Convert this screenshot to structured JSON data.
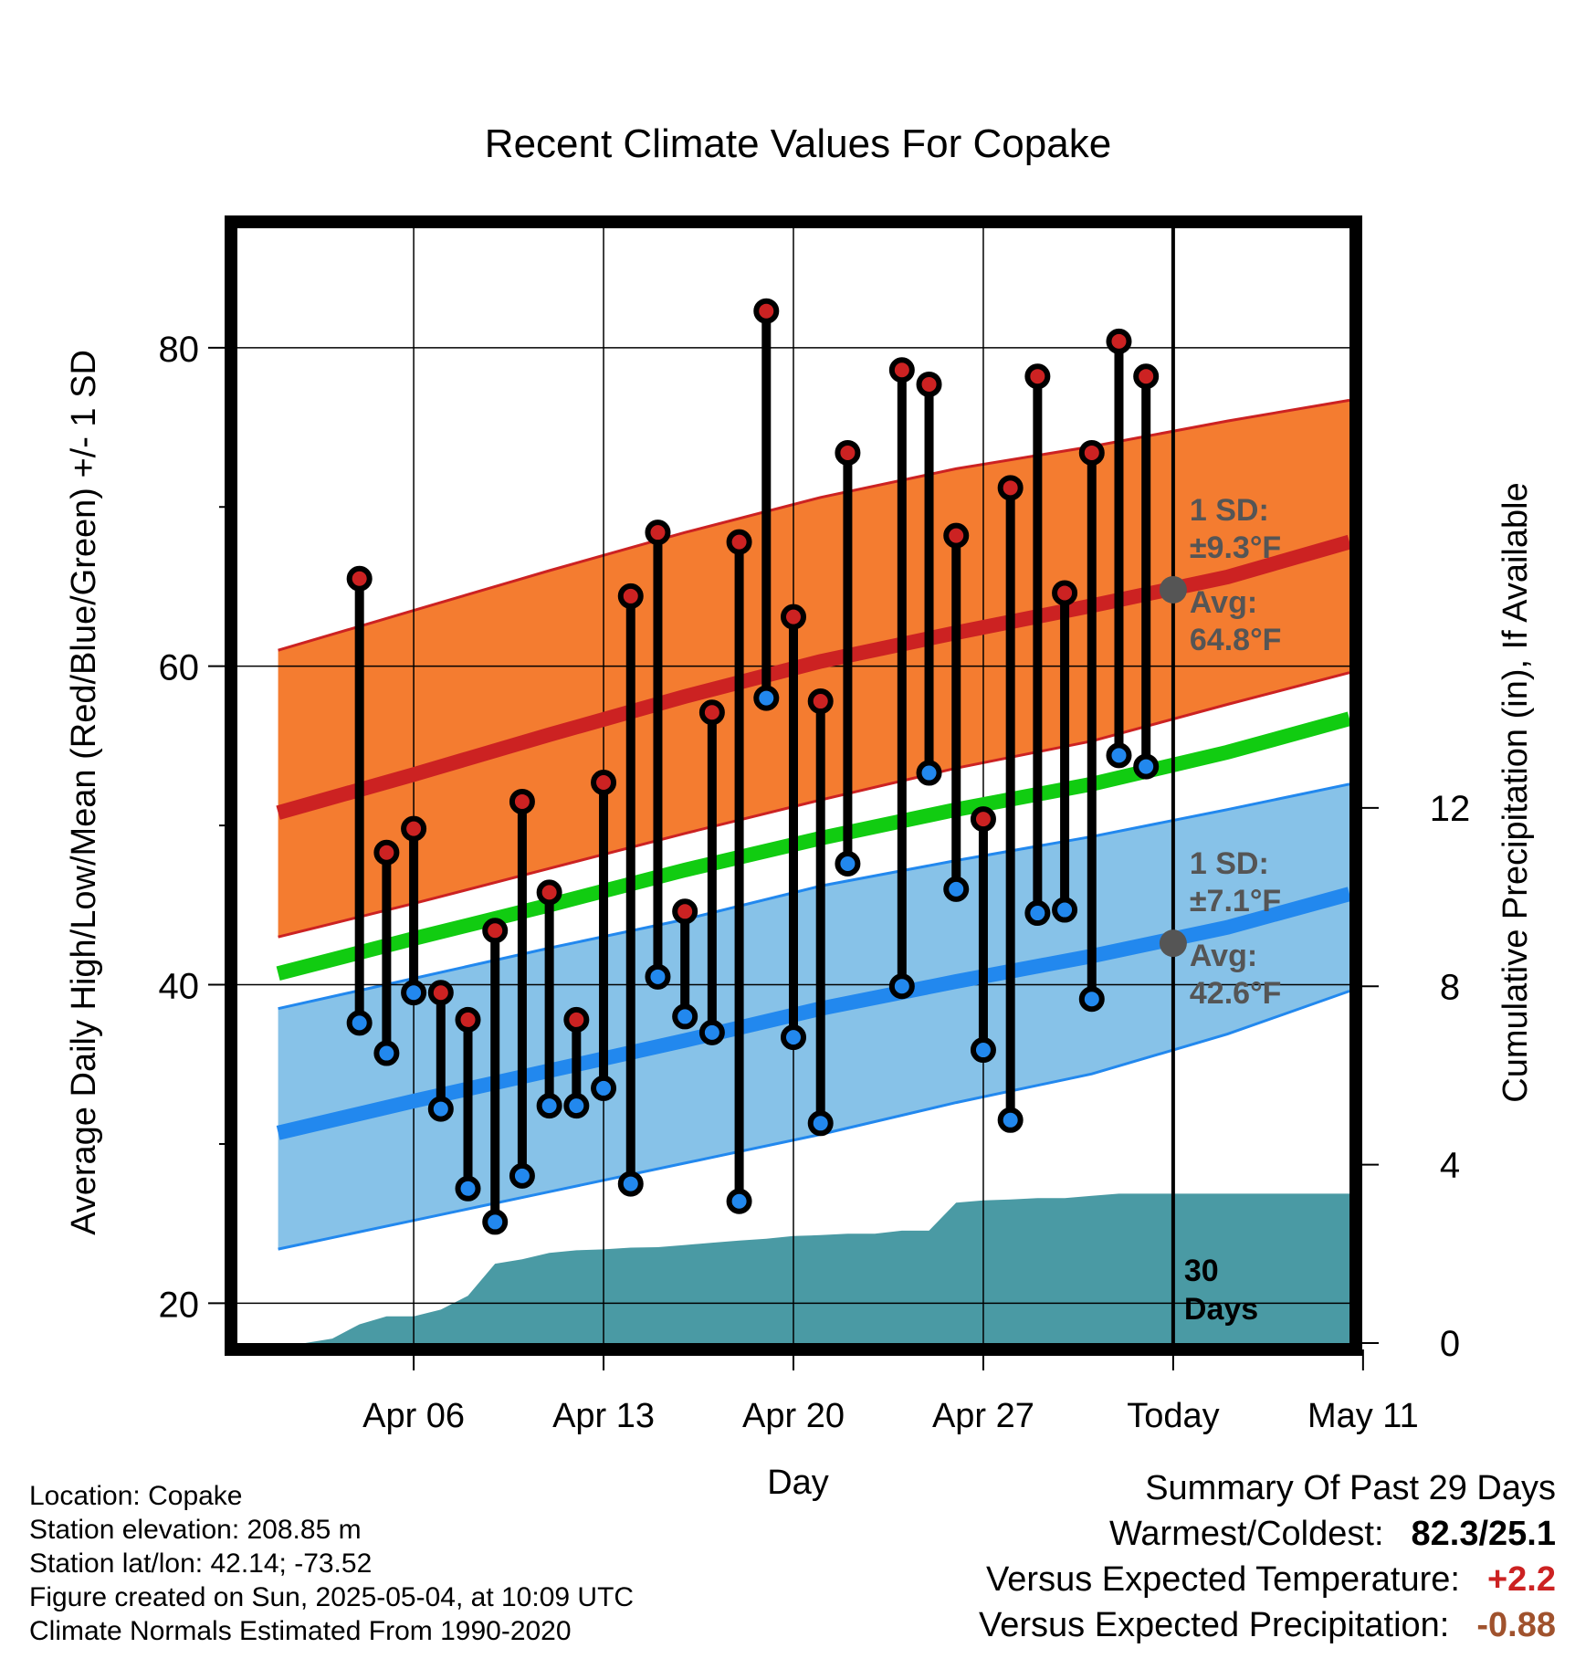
{
  "chart_data": {
    "type": "line",
    "title": "Recent Climate Values For Copake",
    "xlabel": "Day",
    "ylabel": "Average Daily High/Low/Mean (Red/Blue/Green) +/- 1 SD",
    "y2label": "Cumulative Precipitation (in), If Available",
    "ylim": [
      17.5,
      87.5
    ],
    "y_ticks": [
      20,
      40,
      60,
      80
    ],
    "y2lim": [
      0,
      25
    ],
    "y2_ticks": [
      0,
      4,
      8,
      12
    ],
    "x_day_range": [
      -1.5,
      39.5
    ],
    "x_ticks": [
      {
        "day": 5,
        "label": "Apr 06"
      },
      {
        "day": 12,
        "label": "Apr 13"
      },
      {
        "day": 19,
        "label": "Apr 20"
      },
      {
        "day": 26,
        "label": "Apr 27"
      },
      {
        "day": 33,
        "label": "Today"
      },
      {
        "day": 40,
        "label": "May 11"
      }
    ],
    "grid": true,
    "today_day": 33,
    "colors": {
      "high": "#cc2222",
      "low": "#2288ee",
      "mean": "#11cc11",
      "high_band": "#f47c30",
      "low_band": "#87c2e8",
      "precip": "#4a9aa4",
      "annotation": "#555555"
    },
    "daily": {
      "days": [
        3,
        4,
        5,
        6,
        7,
        8,
        9,
        10,
        11,
        12,
        13,
        14,
        15,
        16,
        17,
        18,
        19,
        20,
        21,
        22,
        23,
        24,
        25,
        26,
        27,
        28,
        29,
        30,
        31,
        32
      ],
      "highs": [
        65.5,
        48.3,
        49.8,
        39.5,
        37.8,
        43.4,
        51.5,
        45.8,
        37.8,
        52.7,
        64.4,
        68.4,
        44.6,
        57.1,
        67.8,
        82.3,
        63.1,
        57.8,
        73.4,
        null,
        78.6,
        77.7,
        68.2,
        50.4,
        71.2,
        78.2,
        64.6,
        73.4,
        80.4,
        78.2
      ],
      "lows": [
        37.6,
        35.7,
        39.5,
        32.2,
        27.2,
        25.1,
        28.0,
        32.4,
        32.4,
        33.5,
        27.5,
        40.5,
        38.0,
        37.0,
        26.4,
        58.0,
        36.7,
        31.3,
        47.6,
        null,
        39.9,
        53.3,
        46.0,
        35.9,
        31.5,
        44.5,
        44.7,
        39.1,
        54.4,
        53.7
      ]
    },
    "normals": {
      "days": [
        0,
        5,
        10,
        15,
        20,
        25,
        30,
        35,
        39.5
      ],
      "high_mean": [
        50.8,
        53.2,
        55.7,
        58.1,
        60.3,
        62.1,
        63.8,
        65.6,
        67.8
      ],
      "high_sd_upper": [
        61.0,
        63.5,
        66.0,
        68.4,
        70.6,
        72.4,
        73.8,
        75.4,
        76.7
      ],
      "high_sd_lower": [
        43.0,
        45.1,
        47.3,
        49.5,
        51.6,
        53.6,
        55.3,
        57.6,
        59.6
      ],
      "low_mean": [
        30.7,
        32.7,
        34.6,
        36.5,
        38.5,
        40.2,
        41.8,
        43.6,
        45.7
      ],
      "low_sd_upper": [
        38.5,
        40.4,
        42.3,
        44.1,
        46.2,
        47.8,
        49.3,
        51.0,
        52.6
      ],
      "low_sd_lower": [
        23.4,
        25.2,
        27.0,
        28.8,
        30.6,
        32.6,
        34.4,
        36.9,
        39.6
      ],
      "mean": [
        40.7,
        42.9,
        45.0,
        47.2,
        49.2,
        51.0,
        52.6,
        54.6,
        56.7
      ]
    },
    "precip": {
      "days": [
        1.0,
        2.0,
        3.0,
        4.0,
        5.0,
        6.0,
        7.0,
        8.0,
        9.0,
        10.0,
        11.0,
        12.0,
        13.0,
        14.0,
        15.0,
        16.0,
        17.0,
        18.0,
        19.0,
        20.0,
        21.0,
        22.0,
        23.0,
        24.0,
        25.0,
        26.0,
        27.0,
        28.0,
        29.0,
        30.0,
        31.0,
        32.0,
        33.0,
        34.0,
        35.0,
        36.0,
        37.0,
        38.0,
        39.5
      ],
      "cumulative": [
        0.0,
        0.1,
        0.42,
        0.6,
        0.6,
        0.75,
        1.06,
        1.78,
        1.88,
        2.02,
        2.08,
        2.1,
        2.14,
        2.15,
        2.2,
        2.25,
        2.3,
        2.34,
        2.4,
        2.42,
        2.45,
        2.45,
        2.52,
        2.52,
        3.15,
        3.2,
        3.22,
        3.25,
        3.25,
        3.3,
        3.35,
        3.35,
        3.35,
        3.35,
        3.35,
        3.35,
        3.35,
        3.35,
        3.35
      ]
    },
    "annotations": {
      "high": {
        "sd_title": "1 SD:",
        "sd_value": "±9.3°F",
        "avg_title": "Avg:",
        "avg_value": "64.8°F",
        "avg": 64.8
      },
      "low": {
        "sd_title": "1 SD:",
        "sd_value": "±7.1°F",
        "avg_title": "Avg:",
        "avg_value": "42.6°F",
        "avg": 42.6
      },
      "window_line1": "30",
      "window_line2": "Days"
    }
  },
  "station": {
    "location": "Location: Copake",
    "elevation": "Station elevation: 208.85 m",
    "latlon": "Station lat/lon: 42.14; -73.52",
    "created": "Figure created on Sun, 2025-05-04, at 10:09 UTC",
    "normals": "Climate Normals Estimated From 1990-2020"
  },
  "summary": {
    "title": "Summary Of Past 29 Days",
    "warmest_label": "Warmest/Coldest:",
    "warmest_value": "82.3/25.1",
    "temp_label": "Versus Expected Temperature:",
    "temp_value": "+2.2",
    "precip_label": "Versus Expected Precipitation:",
    "precip_value": "-0.88"
  }
}
